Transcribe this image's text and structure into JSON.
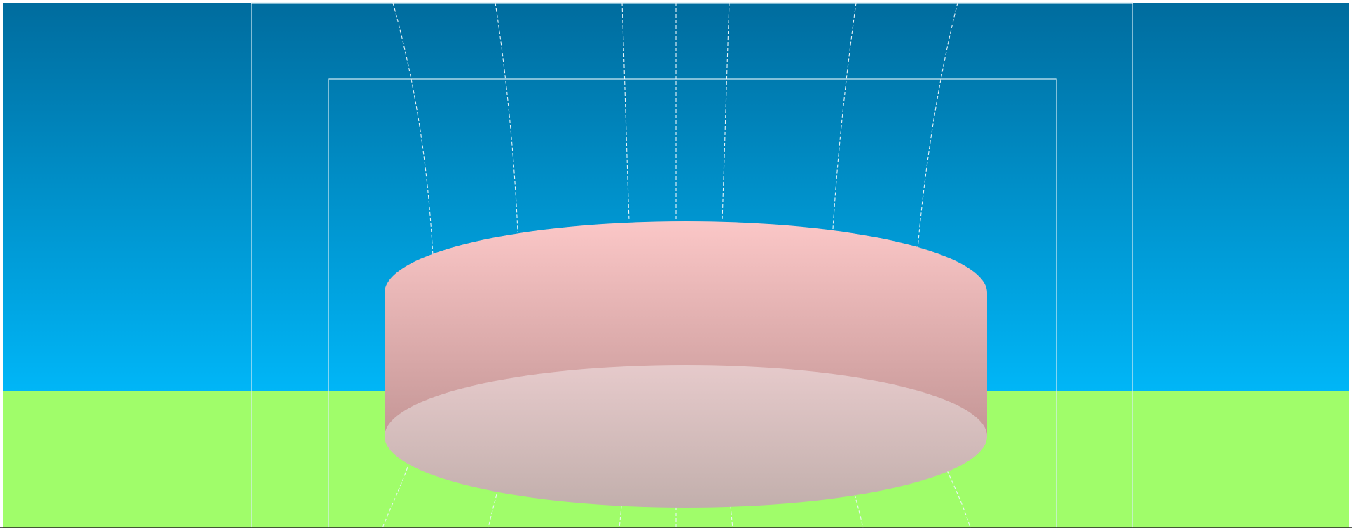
{
  "scene": {
    "colors": {
      "sky_top": "#006c9e",
      "sky_bottom": "#00b6f7",
      "ground": "#a0fd6a",
      "frame_lines": "#d8eef6",
      "flow_lines": "#eaf4f8",
      "cylinder_top_light": "#fbc7c7",
      "cylinder_side_dark": "#c49696",
      "disc_face_top": "#e6cacb",
      "disc_face_bottom": "#c2afac"
    },
    "icons": [
      "cylinder-shape",
      "streamline-lines",
      "frame-rectangles"
    ]
  }
}
